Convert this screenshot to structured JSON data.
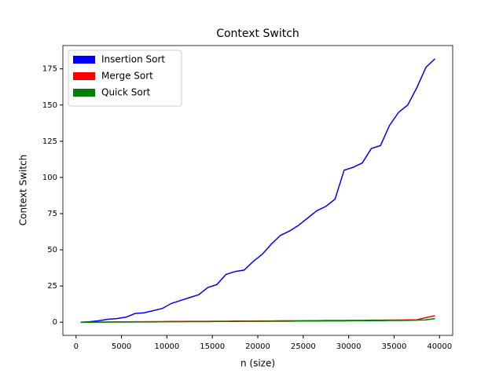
{
  "chart_data": {
    "type": "line",
    "title": "Context Switch",
    "xlabel": "n (size)",
    "ylabel": "Context Switch",
    "x": [
      500,
      1500,
      2500,
      3500,
      4500,
      5500,
      6500,
      7500,
      8500,
      9500,
      10500,
      11500,
      12500,
      13500,
      14500,
      15500,
      16500,
      17500,
      18500,
      19500,
      20500,
      21500,
      22500,
      23500,
      24500,
      25500,
      26500,
      27500,
      28500,
      29500,
      30500,
      31500,
      32500,
      33500,
      34500,
      35500,
      36500,
      37500,
      38500,
      39500
    ],
    "series": [
      {
        "name": "Insertion Sort",
        "color": "#0000ff",
        "values": [
          0,
          0.3,
          1,
          2,
          2.5,
          3.5,
          6,
          6.5,
          8,
          9.5,
          13,
          15,
          17,
          19,
          24,
          26,
          33,
          35,
          36,
          42,
          47,
          54,
          60,
          63,
          67,
          72,
          77,
          80,
          85,
          105,
          107,
          110,
          120,
          122,
          136,
          145,
          150,
          162,
          176,
          182
        ]
      },
      {
        "name": "Merge Sort",
        "color": "#ff0000",
        "values": [
          0,
          0,
          0.1,
          0.1,
          0.2,
          0.2,
          0.3,
          0.3,
          0.4,
          0.4,
          0.5,
          0.5,
          0.6,
          0.6,
          0.6,
          0.7,
          0.7,
          0.8,
          0.8,
          0.8,
          0.9,
          0.9,
          1,
          1,
          1,
          1.1,
          1.1,
          1.2,
          1.2,
          1.2,
          1.3,
          1.3,
          1.4,
          1.4,
          1.5,
          1.5,
          1.6,
          1.7,
          3.2,
          4.5
        ]
      },
      {
        "name": "Quick Sort",
        "color": "#008000",
        "values": [
          0,
          0,
          0,
          0.1,
          0.1,
          0.1,
          0.2,
          0.2,
          0.2,
          0.3,
          0.3,
          0.3,
          0.4,
          0.4,
          0.4,
          0.5,
          0.5,
          0.5,
          0.6,
          0.6,
          0.6,
          0.7,
          0.7,
          0.7,
          0.8,
          0.8,
          0.8,
          0.9,
          0.9,
          0.9,
          1,
          1,
          1.1,
          1.1,
          1.2,
          1.2,
          1.3,
          1.4,
          1.6,
          2.5
        ]
      }
    ],
    "xlim": [
      -1450,
      41450
    ],
    "ylim": [
      -9.1,
      191.1
    ],
    "xticks": [
      0,
      5000,
      10000,
      15000,
      20000,
      25000,
      30000,
      35000,
      40000
    ],
    "yticks": [
      0,
      25,
      50,
      75,
      100,
      125,
      150,
      175
    ],
    "legend": "upper left",
    "grid": false
  }
}
